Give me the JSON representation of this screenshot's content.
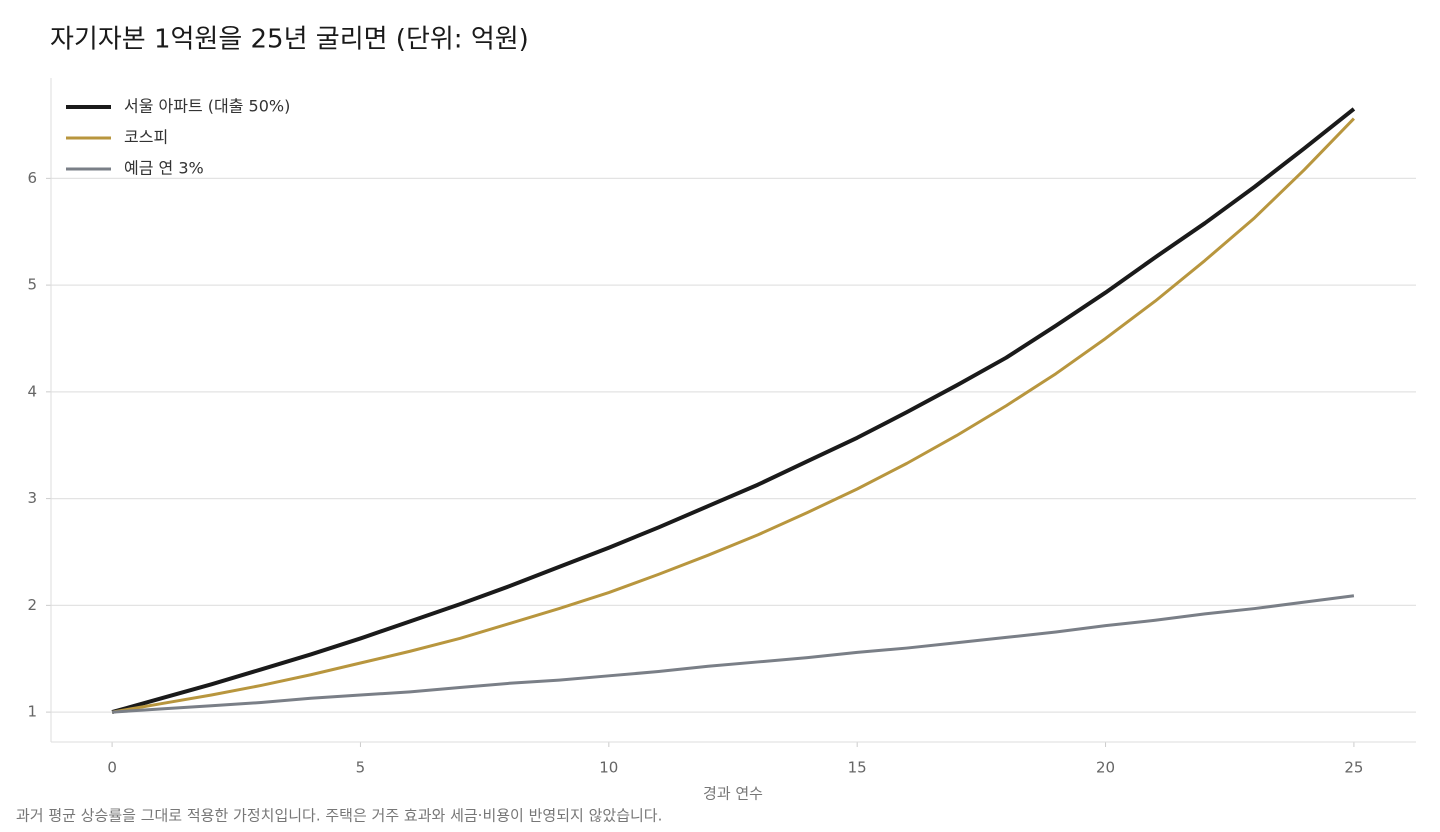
{
  "chart_data": {
    "type": "line",
    "title": "자기자본 1억원을 25년 굴리면 (단위: 억원)",
    "x_label": "경과 연수",
    "footnote": "과거 평균 상승률을 그대로 적용한 가정치입니다. 주택은 거주 효과와 세금·비용이 반영되지 않았습니다.",
    "x": [
      0,
      1,
      2,
      3,
      4,
      5,
      6,
      7,
      8,
      9,
      10,
      11,
      12,
      13,
      14,
      15,
      16,
      17,
      18,
      19,
      20,
      21,
      22,
      23,
      24,
      25
    ],
    "series": [
      {
        "name": "서울 아파트 (대출 50%)",
        "color": "#1a1a1a",
        "width": 4,
        "values": [
          1.0,
          1.13,
          1.26,
          1.4,
          1.54,
          1.69,
          1.85,
          2.01,
          2.18,
          2.36,
          2.54,
          2.73,
          2.93,
          3.13,
          3.35,
          3.57,
          3.81,
          4.06,
          4.32,
          4.62,
          4.93,
          5.26,
          5.58,
          5.92,
          6.28,
          6.65
        ]
      },
      {
        "name": "코스피",
        "color": "#b8963e",
        "width": 3,
        "values": [
          1.0,
          1.08,
          1.16,
          1.25,
          1.35,
          1.46,
          1.57,
          1.69,
          1.83,
          1.97,
          2.12,
          2.29,
          2.47,
          2.66,
          2.87,
          3.09,
          3.33,
          3.59,
          3.87,
          4.17,
          4.5,
          4.85,
          5.23,
          5.63,
          6.08,
          6.56
        ]
      },
      {
        "name": "예금 연 3%",
        "color": "#7a7f87",
        "width": 3,
        "values": [
          1.0,
          1.03,
          1.06,
          1.09,
          1.13,
          1.16,
          1.19,
          1.23,
          1.27,
          1.3,
          1.34,
          1.38,
          1.43,
          1.47,
          1.51,
          1.56,
          1.6,
          1.65,
          1.7,
          1.75,
          1.81,
          1.86,
          1.92,
          1.97,
          2.03,
          2.09
        ]
      }
    ],
    "xlim": [
      -1.23,
      26.25
    ],
    "ylim": [
      0.72,
      6.94
    ],
    "xticks": [
      0,
      5,
      10,
      15,
      20,
      25
    ],
    "yticks": [
      1,
      2,
      3,
      4,
      5,
      6
    ],
    "grid": true,
    "legend": "upper-left"
  }
}
